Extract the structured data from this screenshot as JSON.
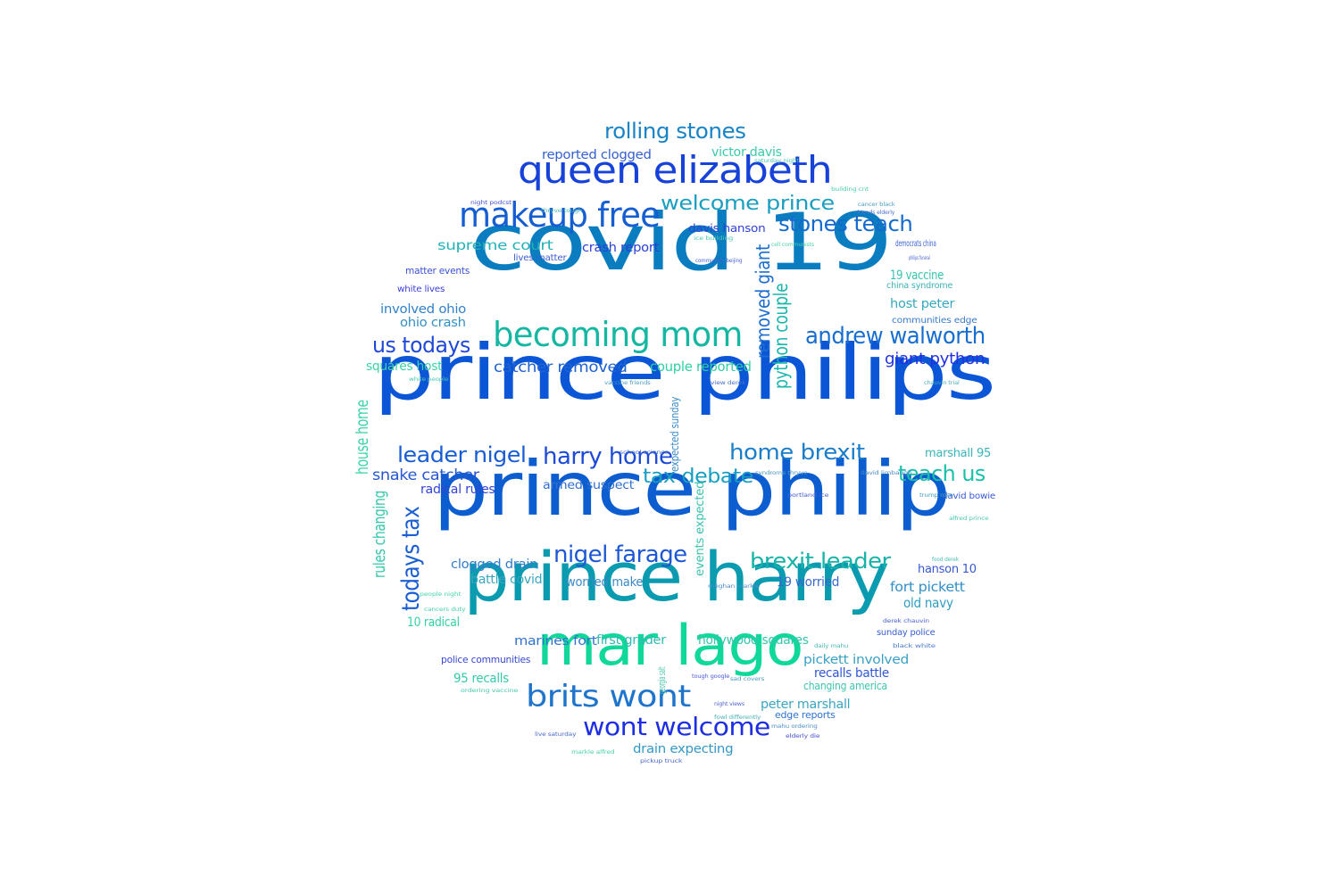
{
  "cloud": {
    "words": [
      {
        "text": "prince philips",
        "color": "#0a56d6"
      },
      {
        "text": "prince philip",
        "color": "#0c5dcf"
      },
      {
        "text": "covid 19",
        "color": "#0a7cc0"
      },
      {
        "text": "prince harry",
        "color": "#0a9bb0"
      },
      {
        "text": "mar lago",
        "color": "#10d89a"
      },
      {
        "text": "queen elizabeth",
        "color": "#1642d9"
      },
      {
        "text": "makeup free",
        "color": "#155ed2"
      },
      {
        "text": "becoming mom",
        "color": "#16b7a2"
      },
      {
        "text": "brits wont",
        "color": "#1f74cc"
      },
      {
        "text": "wont welcome",
        "color": "#1d2ee3"
      },
      {
        "text": "rolling stones",
        "color": "#1883c6"
      },
      {
        "text": "andrew walworth",
        "color": "#176ed0"
      },
      {
        "text": "welcome prince",
        "color": "#1b9ec0"
      },
      {
        "text": "stones teach",
        "color": "#1469cf"
      },
      {
        "text": "us todays",
        "color": "#1f48d8"
      },
      {
        "text": "leader nigel",
        "color": "#185dd3"
      },
      {
        "text": "harry home",
        "color": "#1d4bd8"
      },
      {
        "text": "home brexit",
        "color": "#1a7ecb"
      },
      {
        "text": "tax debate",
        "color": "#169ec2"
      },
      {
        "text": "teach us",
        "color": "#19c0a8"
      },
      {
        "text": "nigel farage",
        "color": "#1c58d5"
      },
      {
        "text": "brexit leader",
        "color": "#16b3a8"
      },
      {
        "text": "todays tax",
        "color": "#1a5ed4"
      },
      {
        "text": "removed giant",
        "color": "#1b6ed0"
      },
      {
        "text": "python couple",
        "color": "#19b6ad"
      },
      {
        "text": "giant python",
        "color": "#2331e0"
      },
      {
        "text": "supreme court",
        "color": "#22b2b6"
      },
      {
        "text": "crash report",
        "color": "#2b3fd9"
      },
      {
        "text": "catcher removed",
        "color": "#2163d1"
      },
      {
        "text": "couple reported",
        "color": "#2cd0a4"
      },
      {
        "text": "snake catcher",
        "color": "#2557d4"
      },
      {
        "text": "reported clogged",
        "color": "#3360d3"
      },
      {
        "text": "victor davis",
        "color": "#3cc9ab"
      },
      {
        "text": "davis hanson",
        "color": "#2f42d9"
      },
      {
        "text": "involved ohio",
        "color": "#3181cb"
      },
      {
        "text": "ohio crash",
        "color": "#3390c6"
      },
      {
        "text": "squares host",
        "color": "#3cd2a8"
      },
      {
        "text": "host peter",
        "color": "#36a8bf"
      },
      {
        "text": "19 vaccine",
        "color": "#35c3b0"
      },
      {
        "text": "radical rules",
        "color": "#3244d8"
      },
      {
        "text": "armed suspect",
        "color": "#3270d0"
      },
      {
        "text": "clogged drain",
        "color": "#327dcc"
      },
      {
        "text": "battle covid",
        "color": "#37a6c1"
      },
      {
        "text": "worried make",
        "color": "#3b88c8"
      },
      {
        "text": "19 worried",
        "color": "#3868cf"
      },
      {
        "text": "marshall 95",
        "color": "#3ab5b7"
      },
      {
        "text": "hanson 10",
        "color": "#3658d4"
      },
      {
        "text": "fort pickett",
        "color": "#3290c8"
      },
      {
        "text": "old navy",
        "color": "#2e9ec2"
      },
      {
        "text": "marines fort",
        "color": "#3173cf"
      },
      {
        "text": "first grader",
        "color": "#31b9b3"
      },
      {
        "text": "hollywood squares",
        "color": "#36c3ad"
      },
      {
        "text": "pickett involved",
        "color": "#3aa1c3"
      },
      {
        "text": "recalls battle",
        "color": "#2c56d5"
      },
      {
        "text": "changing america",
        "color": "#3dc5ae"
      },
      {
        "text": "95 recalls",
        "color": "#34c9ac"
      },
      {
        "text": "peter marshall",
        "color": "#38a6c2"
      },
      {
        "text": "edge reports",
        "color": "#2f72cf"
      },
      {
        "text": "drain expecting",
        "color": "#3498c5"
      },
      {
        "text": "10 radical",
        "color": "#33d0a6"
      },
      {
        "text": "police communities",
        "color": "#3548d6"
      },
      {
        "text": "house home",
        "color": "#3cd2aa"
      },
      {
        "text": "rules changing",
        "color": "#36c7ae"
      },
      {
        "text": "events expected",
        "color": "#3ac0ad"
      },
      {
        "text": "expected sunday",
        "color": "#3d8dc9"
      },
      {
        "text": "matter events",
        "color": "#3a52d6"
      },
      {
        "text": "white lives",
        "color": "#3a3fdb"
      },
      {
        "text": "lives matter",
        "color": "#3a5cd4"
      },
      {
        "text": "democrats china",
        "color": "#3a64d3"
      },
      {
        "text": "china syndrome",
        "color": "#3bb3b6"
      },
      {
        "text": "communities edge",
        "color": "#3a7bcc"
      },
      {
        "text": "sunday police",
        "color": "#3a60d3"
      },
      {
        "text": "david bowie",
        "color": "#3a5ad5"
      },
      {
        "text": "saturday night",
        "color": "#4ec6b2"
      },
      {
        "text": "building cnt",
        "color": "#4ccdb0"
      },
      {
        "text": "cancer black",
        "color": "#4da0c3"
      },
      {
        "text": "friends elderly",
        "color": "#4a6fcf"
      },
      {
        "text": "night podcst",
        "color": "#4a55d6"
      },
      {
        "text": "thryve tough",
        "color": "#4fbdb5"
      },
      {
        "text": "ice building",
        "color": "#4ac8b0"
      },
      {
        "text": "cell communists",
        "color": "#4dd4ac"
      },
      {
        "text": "communists beijing",
        "color": "#4a60d4"
      },
      {
        "text": "philips funeral",
        "color": "#4a66d2"
      },
      {
        "text": "white people",
        "color": "#4bc5b1"
      },
      {
        "text": "vaccine friends",
        "color": "#4a9fc4"
      },
      {
        "text": "view derek",
        "color": "#4a6fcf"
      },
      {
        "text": "chauvin trial",
        "color": "#4ab0ba"
      },
      {
        "text": "school science",
        "color": "#4a72cf"
      },
      {
        "text": "syndrome thryve",
        "color": "#4a9ac5"
      },
      {
        "text": "david limbaugh",
        "color": "#4a8dc9"
      },
      {
        "text": "portland ice",
        "color": "#4a5ed4"
      },
      {
        "text": "trump rose",
        "color": "#4aa0c4"
      },
      {
        "text": "alfred prince",
        "color": "#4ac9b0"
      },
      {
        "text": "food derek",
        "color": "#4abeb5"
      },
      {
        "text": "people night",
        "color": "#4ad4ac"
      },
      {
        "text": "cancers duty",
        "color": "#4ad0ae"
      },
      {
        "text": "meghan markle",
        "color": "#4a8ac9"
      },
      {
        "text": "derek chauvin",
        "color": "#4a60d4"
      },
      {
        "text": "black white",
        "color": "#4a7acc"
      },
      {
        "text": "daily mahu",
        "color": "#4ab8b8"
      },
      {
        "text": "tough google",
        "color": "#4a58d5"
      },
      {
        "text": "sad covers",
        "color": "#4a9cc5"
      },
      {
        "text": "night views",
        "color": "#4a62d3"
      },
      {
        "text": "georgia salt",
        "color": "#4ac5b0"
      },
      {
        "text": "fowl differently",
        "color": "#4ab3b9"
      },
      {
        "text": "mahu ordering",
        "color": "#4a90c8"
      },
      {
        "text": "elderly die",
        "color": "#4a52d6"
      },
      {
        "text": "ordering vaccine",
        "color": "#4ac9b0"
      },
      {
        "text": "live saturday",
        "color": "#4a6ace"
      },
      {
        "text": "markle alfred",
        "color": "#4ad3ac"
      },
      {
        "text": "pickup truck",
        "color": "#4a68d0"
      }
    ]
  }
}
